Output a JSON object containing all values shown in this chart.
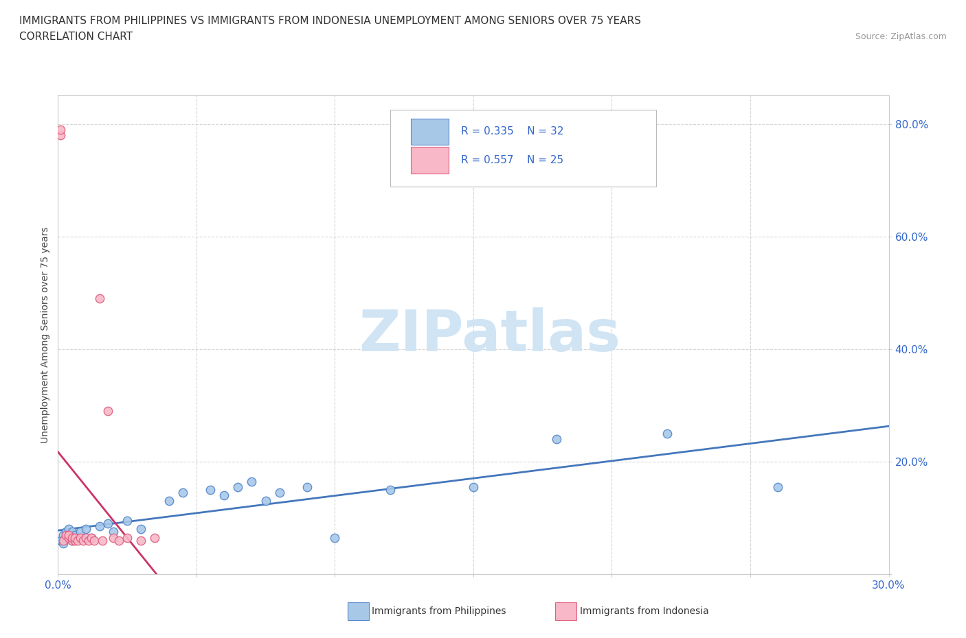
{
  "title_line1": "IMMIGRANTS FROM PHILIPPINES VS IMMIGRANTS FROM INDONESIA UNEMPLOYMENT AMONG SENIORS OVER 75 YEARS",
  "title_line2": "CORRELATION CHART",
  "source_text": "Source: ZipAtlas.com",
  "ylabel": "Unemployment Among Seniors over 75 years",
  "xlim": [
    0.0,
    0.3
  ],
  "ylim": [
    0.0,
    0.85
  ],
  "xtick_positions": [
    0.0,
    0.05,
    0.1,
    0.15,
    0.2,
    0.25,
    0.3
  ],
  "ytick_positions": [
    0.0,
    0.2,
    0.4,
    0.6,
    0.8
  ],
  "philippines_x": [
    0.001,
    0.002,
    0.002,
    0.003,
    0.003,
    0.004,
    0.005,
    0.005,
    0.006,
    0.008,
    0.01,
    0.012,
    0.015,
    0.018,
    0.02,
    0.025,
    0.03,
    0.04,
    0.045,
    0.055,
    0.06,
    0.065,
    0.07,
    0.075,
    0.08,
    0.09,
    0.1,
    0.12,
    0.15,
    0.18,
    0.22,
    0.26
  ],
  "philippines_y": [
    0.06,
    0.055,
    0.07,
    0.065,
    0.075,
    0.08,
    0.06,
    0.075,
    0.07,
    0.075,
    0.08,
    0.065,
    0.085,
    0.09,
    0.075,
    0.095,
    0.08,
    0.13,
    0.145,
    0.15,
    0.14,
    0.155,
    0.165,
    0.13,
    0.145,
    0.155,
    0.065,
    0.15,
    0.155,
    0.24,
    0.25,
    0.155
  ],
  "indonesia_x": [
    0.001,
    0.001,
    0.002,
    0.003,
    0.004,
    0.004,
    0.005,
    0.005,
    0.006,
    0.006,
    0.007,
    0.008,
    0.009,
    0.01,
    0.011,
    0.012,
    0.013,
    0.015,
    0.016,
    0.018,
    0.02,
    0.022,
    0.025,
    0.03,
    0.035
  ],
  "indonesia_y": [
    0.78,
    0.79,
    0.06,
    0.07,
    0.065,
    0.07,
    0.06,
    0.065,
    0.06,
    0.065,
    0.06,
    0.065,
    0.06,
    0.065,
    0.06,
    0.065,
    0.06,
    0.49,
    0.06,
    0.29,
    0.065,
    0.06,
    0.065,
    0.06,
    0.065
  ],
  "philippines_color": "#a8c8e8",
  "philippines_edge_color": "#5588cc",
  "indonesia_color": "#f8b8c8",
  "indonesia_edge_color": "#e06080",
  "philippines_line_color": "#4477bb",
  "indonesia_line_color": "#cc3366",
  "r_philippines": "R = 0.335",
  "n_philippines": "N = 32",
  "r_indonesia": "R = 0.557",
  "n_indonesia": "N = 25",
  "tick_color": "#3366cc",
  "grid_color": "#cccccc",
  "watermark_text": "ZIPatlas",
  "watermark_color": "#d0e4f4",
  "title_fontsize": 11,
  "label_fontsize": 10,
  "tick_fontsize": 11,
  "legend_fontsize": 11
}
